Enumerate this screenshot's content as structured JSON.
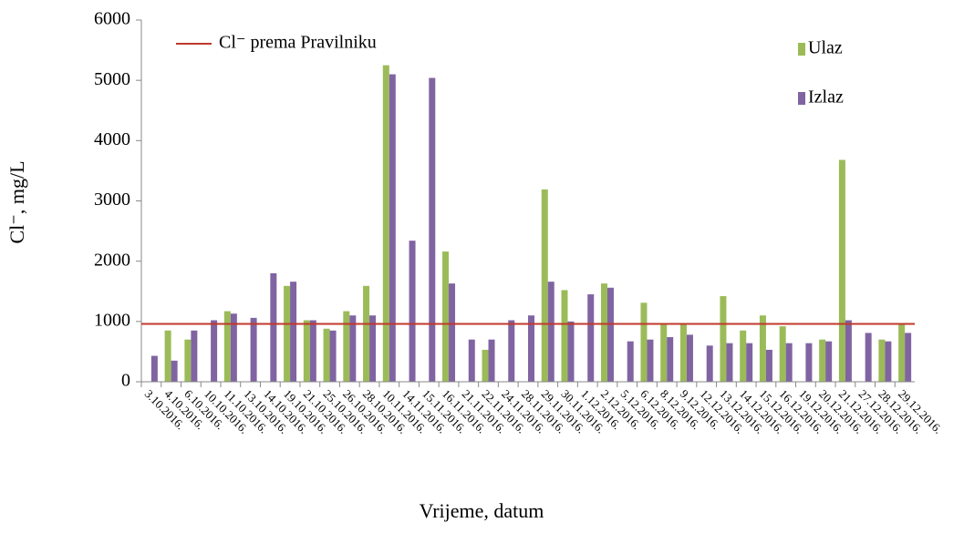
{
  "chart_data": {
    "type": "bar",
    "y_label": "Cl⁻, mg/L",
    "x_label": "Vrijeme, datum",
    "categories": [
      "3.10.2016.",
      "4.10.2016.",
      "6.10.2016.",
      "10.10.2016.",
      "11.10.2016.",
      "13.10.2016.",
      "14.10.2016.",
      "19.10.2016.",
      "21.10.2016.",
      "25.10.2016.",
      "26.10.2016.",
      "28.10.2016.",
      "10.11.2016.",
      "14.11.2016.",
      "15.11.2016.",
      "16.11.2016.",
      "21.11.2016.",
      "22.11.2016.",
      "24.11.2016.",
      "28.11.2016.",
      "29.11.2016.",
      "30.11.2016.",
      "1.12.2016.",
      "2.12.2016.",
      "5.12.2016.",
      "6.12.2016.",
      "8.12.2016.",
      "9.12.2016.",
      "12.12.2016.",
      "13.12.2016.",
      "14.12.2016.",
      "15.12.2016.",
      "16.12.2016.",
      "19.12.2016.",
      "20.12.2016.",
      "21.12.2016.",
      "27.12.2016.",
      "28.12.2016.",
      "29.12.2016."
    ],
    "series": [
      {
        "name": "Ulaz",
        "color": "#9bbb59",
        "values": [
          null,
          850,
          700,
          null,
          1170,
          null,
          null,
          1590,
          1020,
          880,
          1170,
          1590,
          5250,
          null,
          null,
          2160,
          null,
          530,
          null,
          null,
          3190,
          1520,
          null,
          1630,
          null,
          1310,
          970,
          970,
          null,
          1420,
          850,
          1100,
          920,
          null,
          700,
          3680,
          null,
          700,
          960
        ]
      },
      {
        "name": "Izlaz",
        "color": "#8064a2",
        "values": [
          430,
          350,
          850,
          1020,
          1130,
          1060,
          1800,
          1660,
          1020,
          850,
          1100,
          1100,
          5100,
          2340,
          5040,
          1630,
          700,
          700,
          1020,
          1100,
          1660,
          1000,
          1450,
          1560,
          670,
          700,
          740,
          780,
          600,
          640,
          640,
          530,
          640,
          640,
          670,
          1020,
          810,
          670,
          810
        ]
      }
    ],
    "reference_line": {
      "name": "Cl⁻ prema Pravilniku",
      "value": 960,
      "color": "#c0392b"
    },
    "ylim": [
      0,
      6000
    ],
    "yticks": [
      0,
      1000,
      2000,
      3000,
      4000,
      5000,
      6000
    ]
  }
}
